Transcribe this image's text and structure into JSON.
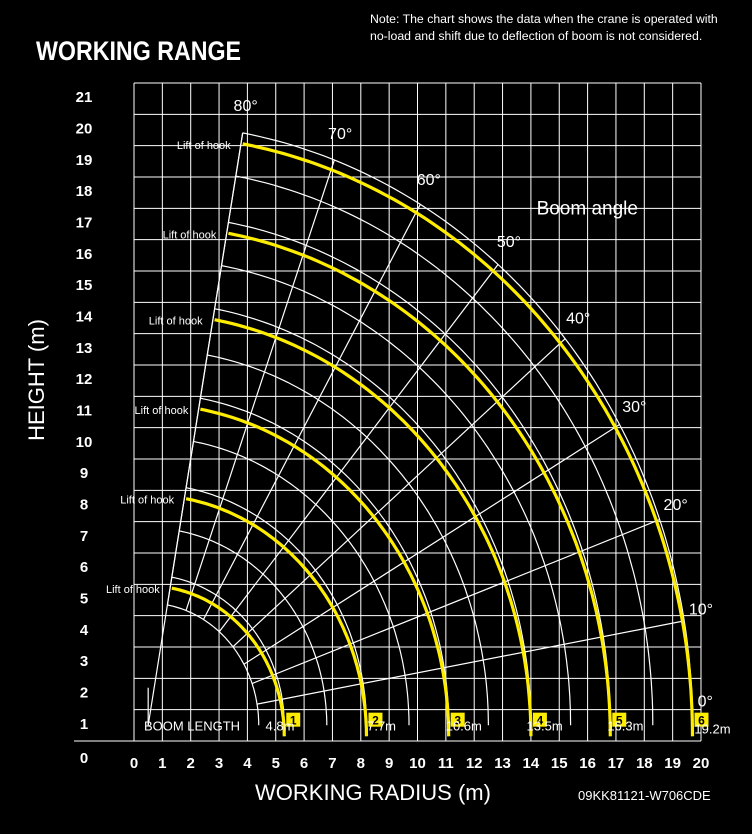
{
  "chart_data": {
    "type": "line",
    "title": "WORKING RANGE",
    "note_lines": [
      "Note: The chart shows the data when the crane is operated with",
      "no-load and shift due to deflection of boom is not considered."
    ],
    "xlabel": "WORKING RADIUS (m)",
    "ylabel": "HEIGHT (m)",
    "xlim": [
      0,
      20
    ],
    "ylim": [
      0,
      21
    ],
    "x_ticks": [
      "0",
      "1",
      "2",
      "3",
      "4",
      "5",
      "6",
      "7",
      "8",
      "9",
      "10",
      "11",
      "12",
      "13",
      "14",
      "15",
      "16",
      "17",
      "18",
      "19",
      "20"
    ],
    "y_ticks": [
      "0",
      "1",
      "2",
      "3",
      "4",
      "5",
      "6",
      "7",
      "8",
      "9",
      "10",
      "11",
      "12",
      "13",
      "14",
      "15",
      "16",
      "17",
      "18",
      "19",
      "20",
      "21"
    ],
    "grid": true,
    "boom_pivot": {
      "x": 0.5,
      "y": 0.5
    },
    "boom_angle_label": "Boom angle",
    "boom_angles": [
      "0°",
      "10°",
      "20°",
      "30°",
      "40°",
      "50°",
      "60°",
      "70°",
      "80°"
    ],
    "boom_length_label": "BOOM LENGTH",
    "series": [
      {
        "section": "1",
        "boom_length": "4.8m",
        "boom_length_m": 4.8,
        "lift_of_hook_label": "Lift of hook",
        "lift_of_hook_height": 5.0
      },
      {
        "section": "2",
        "boom_length": "7.7m",
        "boom_length_m": 7.7,
        "lift_of_hook_label": "Lift of hook",
        "lift_of_hook_height": 7.9
      },
      {
        "section": "3",
        "boom_length": "10.6m",
        "boom_length_m": 10.6,
        "lift_of_hook_label": "Lift of hook",
        "lift_of_hook_height": 10.8
      },
      {
        "section": "4",
        "boom_length": "13.5m",
        "boom_length_m": 13.5,
        "lift_of_hook_label": "Lift of hook",
        "lift_of_hook_height": 13.7
      },
      {
        "section": "5",
        "boom_length": "16.3m",
        "boom_length_m": 16.3,
        "lift_of_hook_label": "Lift of hook",
        "lift_of_hook_height": 16.5
      },
      {
        "section": "6",
        "boom_length": "19.2m",
        "boom_length_m": 19.2,
        "lift_of_hook_label": "Lift of hook",
        "lift_of_hook_height": 19.3
      }
    ],
    "code": "09KK81121-W706CDE"
  },
  "colors": {
    "background": "#000000",
    "grid": "#ffffff",
    "hook_curve": "#ffed00",
    "section_badge": "#ffed00"
  }
}
